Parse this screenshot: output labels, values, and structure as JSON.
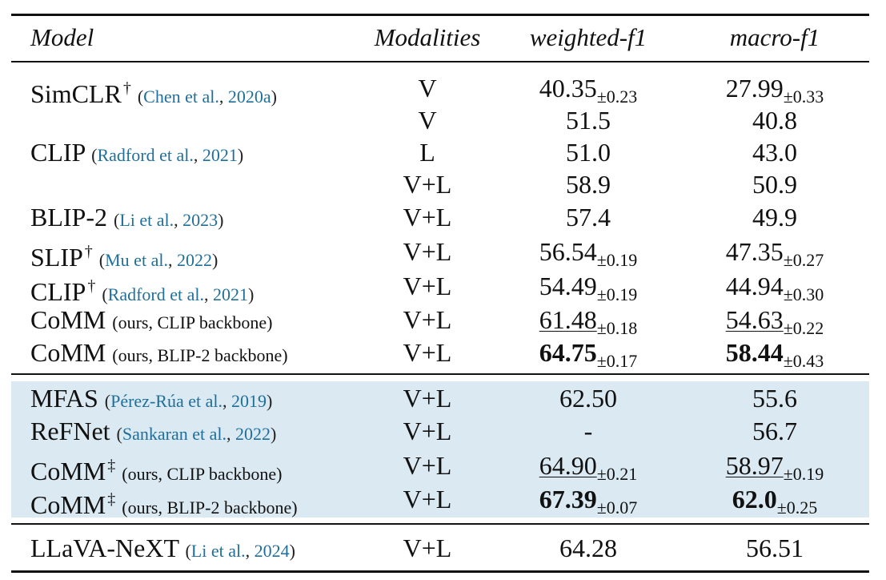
{
  "headers": {
    "model": "Model",
    "modalities": "Modalities",
    "weighted_f1": "weighted-f1",
    "macro_f1": "macro-f1"
  },
  "rows": [
    {
      "name": "SimCLR",
      "mark": "†",
      "cite_author": "Chen et al.",
      "cite_year": "2020a",
      "mod": "V",
      "wf1": "40.35",
      "wf1_sd": "±0.23",
      "mf1": "27.99",
      "mf1_sd": "±0.33"
    },
    {
      "mod": "V",
      "wf1": "51.5",
      "mf1": "40.8"
    },
    {
      "name": "CLIP",
      "cite_author": "Radford et al.",
      "cite_year": "2021",
      "mod": "L",
      "wf1": "51.0",
      "mf1": "43.0"
    },
    {
      "mod": "V+L",
      "wf1": "58.9",
      "mf1": "50.9"
    },
    {
      "name": "BLIP-2",
      "cite_author": "Li et al.",
      "cite_year": "2023",
      "mod": "V+L",
      "wf1": "57.4",
      "mf1": "49.9"
    },
    {
      "name": "SLIP",
      "mark": "†",
      "cite_author": "Mu et al.",
      "cite_year": "2022",
      "mod": "V+L",
      "wf1": "56.54",
      "wf1_sd": "±0.19",
      "mf1": "47.35",
      "mf1_sd": "±0.27"
    },
    {
      "name": "CLIP",
      "mark": "†",
      "cite_author": "Radford et al.",
      "cite_year": "2021",
      "mod": "V+L",
      "wf1": "54.49",
      "wf1_sd": "±0.19",
      "mf1": "44.94",
      "mf1_sd": "±0.30"
    },
    {
      "name": "CoMM",
      "note": "(ours, CLIP backbone)",
      "mod": "V+L",
      "wf1": "61.48",
      "wf1_sd": "±0.18",
      "mf1": "54.63",
      "mf1_sd": "±0.22"
    },
    {
      "name": "CoMM",
      "note": "(ours, BLIP-2 backbone)",
      "mod": "V+L",
      "wf1": "64.75",
      "wf1_sd": "±0.17",
      "mf1": "58.44",
      "mf1_sd": "±0.43"
    },
    {
      "name": "MFAS",
      "cite_author": "Pérez-Rúa et al.",
      "cite_year": "2019",
      "mod": "V+L",
      "wf1": "62.50",
      "mf1": "55.6"
    },
    {
      "name": "ReFNet",
      "cite_author": "Sankaran et al.",
      "cite_year": "2022",
      "mod": "V+L",
      "wf1": "-",
      "mf1": "56.7"
    },
    {
      "name": "CoMM",
      "mark": "‡",
      "note": "(ours, CLIP backbone)",
      "mod": "V+L",
      "wf1": "64.90",
      "wf1_sd": "±0.21",
      "mf1": "58.97",
      "mf1_sd": "±0.19"
    },
    {
      "name": "CoMM",
      "mark": "‡",
      "note": "(ours, BLIP-2 backbone)",
      "mod": "V+L",
      "wf1": "67.39",
      "wf1_sd": "±0.07",
      "mf1": "62.0",
      "mf1_sd": "±0.25"
    },
    {
      "name": "LLaVA-NeXT",
      "cite_author": "Li et al.",
      "cite_year": "2024",
      "mod": "V+L",
      "wf1": "64.28",
      "mf1": "56.51"
    }
  ],
  "colors": {
    "cite_link": "#1f6f9a",
    "highlight_band": "#dbeaf2",
    "rule": "#111111"
  }
}
